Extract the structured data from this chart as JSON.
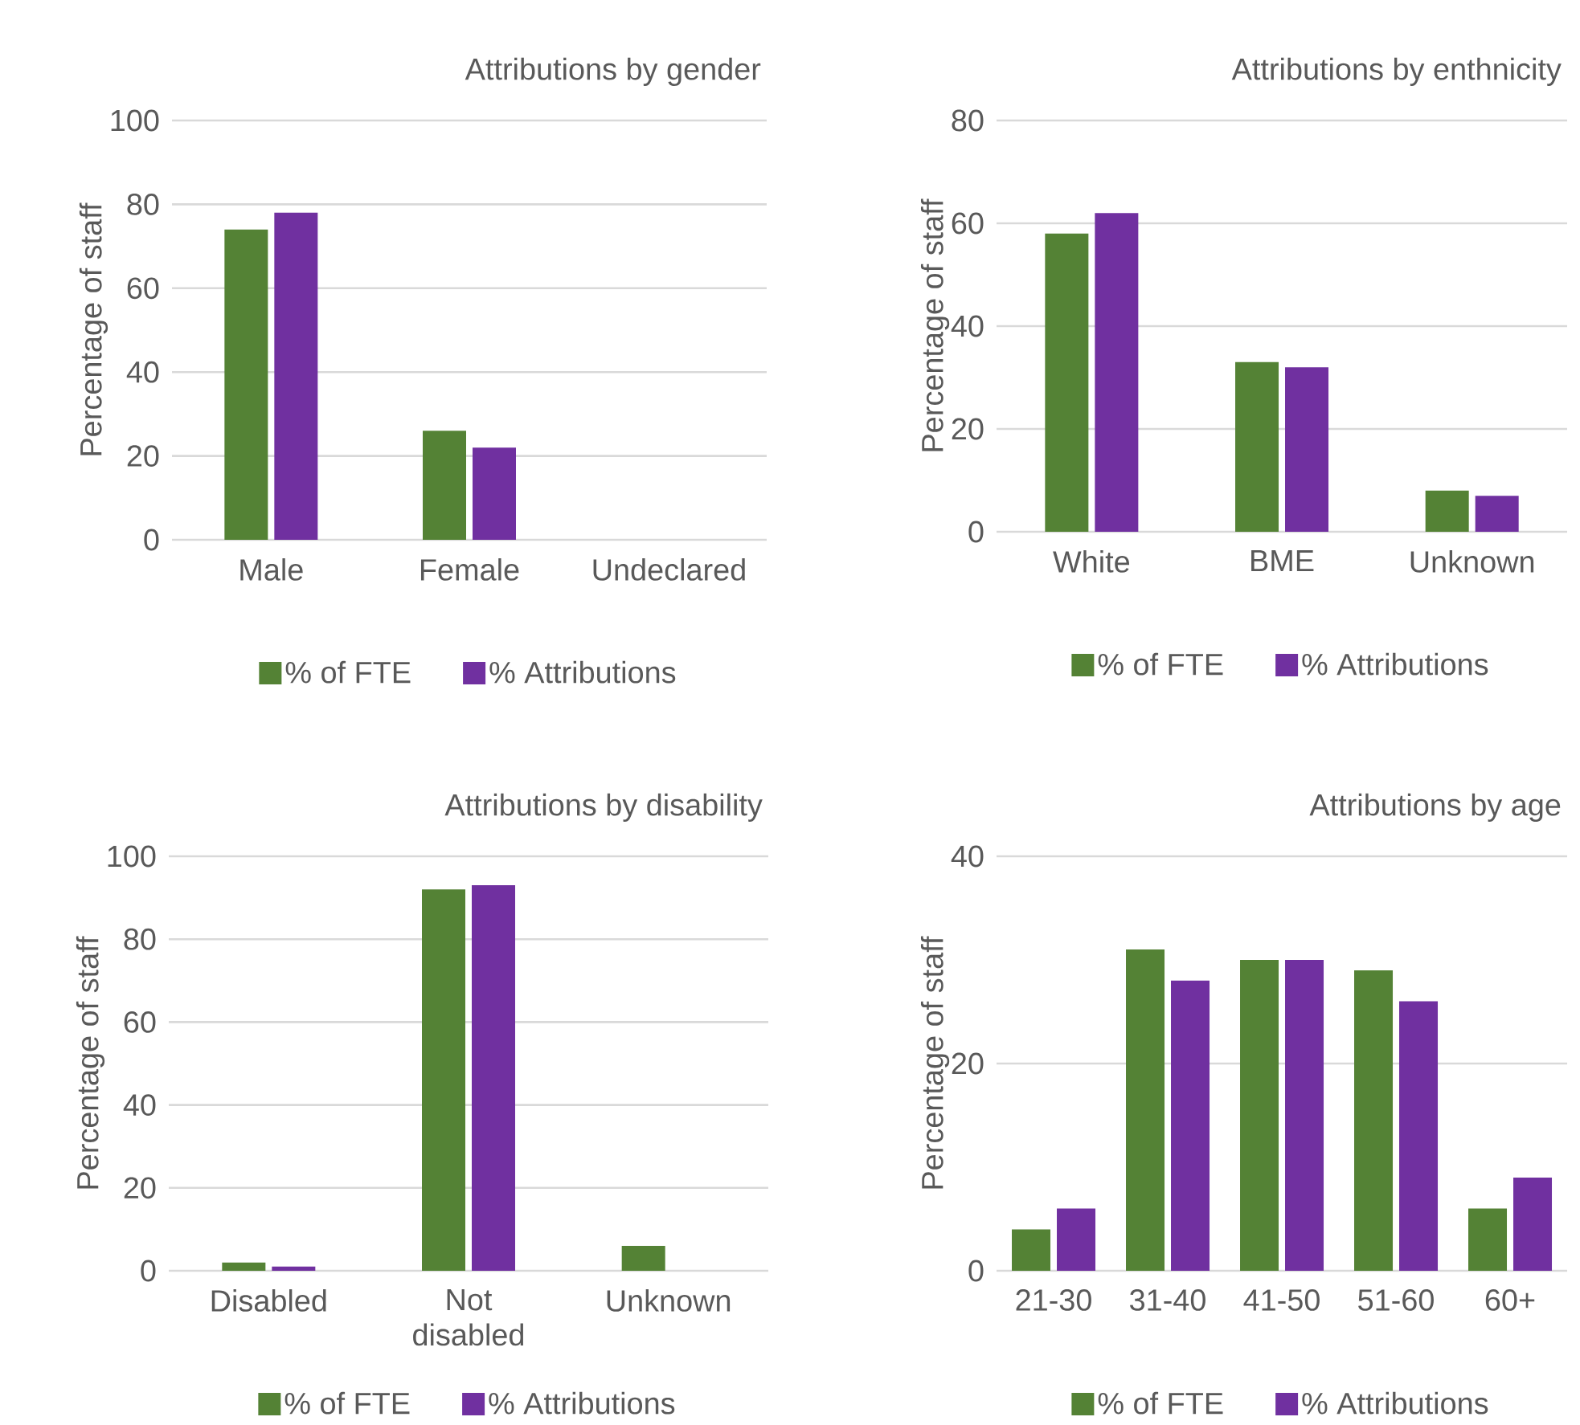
{
  "chart_data": [
    {
      "type": "bar",
      "title": "Attributions by gender",
      "ylabel": "Percentage of staff",
      "categories": [
        "Male",
        "Female",
        "Undeclared"
      ],
      "series": [
        {
          "name": "% of FTE",
          "color": "#548235",
          "values": [
            74,
            26,
            0
          ]
        },
        {
          "name": "% Attributions",
          "color": "#7030a0",
          "values": [
            78,
            22,
            0
          ]
        }
      ],
      "ylim": [
        0,
        100
      ],
      "yticks": [
        0,
        20,
        40,
        60,
        80,
        100
      ],
      "grid": "y",
      "legend": "bottom"
    },
    {
      "type": "bar",
      "title": "Attributions by enthnicity",
      "ylabel": "Percentage of staff",
      "categories": [
        "White",
        "BME",
        "Unknown"
      ],
      "series": [
        {
          "name": "% of FTE",
          "color": "#548235",
          "values": [
            58,
            33,
            8
          ]
        },
        {
          "name": "% Attributions",
          "color": "#7030a0",
          "values": [
            62,
            32,
            7
          ]
        }
      ],
      "ylim": [
        0,
        80
      ],
      "yticks": [
        0,
        20,
        40,
        60,
        80
      ],
      "grid": "y",
      "legend": "bottom"
    },
    {
      "type": "bar",
      "title": "Attributions by disability",
      "ylabel": "Percentage of staff",
      "categories": [
        "Disabled",
        "Not disabled",
        "Unknown"
      ],
      "series": [
        {
          "name": "% of FTE",
          "color": "#548235",
          "values": [
            2,
            92,
            6
          ]
        },
        {
          "name": "% Attributions",
          "color": "#7030a0",
          "values": [
            1,
            93,
            0
          ]
        }
      ],
      "ylim": [
        0,
        100
      ],
      "yticks": [
        0,
        20,
        40,
        60,
        80,
        100
      ],
      "grid": "y",
      "legend": "bottom"
    },
    {
      "type": "bar",
      "title": "Attributions by age",
      "ylabel": "Percentage of staff",
      "categories": [
        "21-30",
        "31-40",
        "41-50",
        "51-60",
        "60+"
      ],
      "series": [
        {
          "name": "% of FTE",
          "color": "#548235",
          "values": [
            4,
            31,
            30,
            29,
            6
          ]
        },
        {
          "name": "% Attributions",
          "color": "#7030a0",
          "values": [
            6,
            28,
            30,
            26,
            9
          ]
        }
      ],
      "ylim": [
        0,
        40
      ],
      "yticks": [
        0,
        20,
        40
      ],
      "grid": "y",
      "legend": "bottom"
    }
  ]
}
